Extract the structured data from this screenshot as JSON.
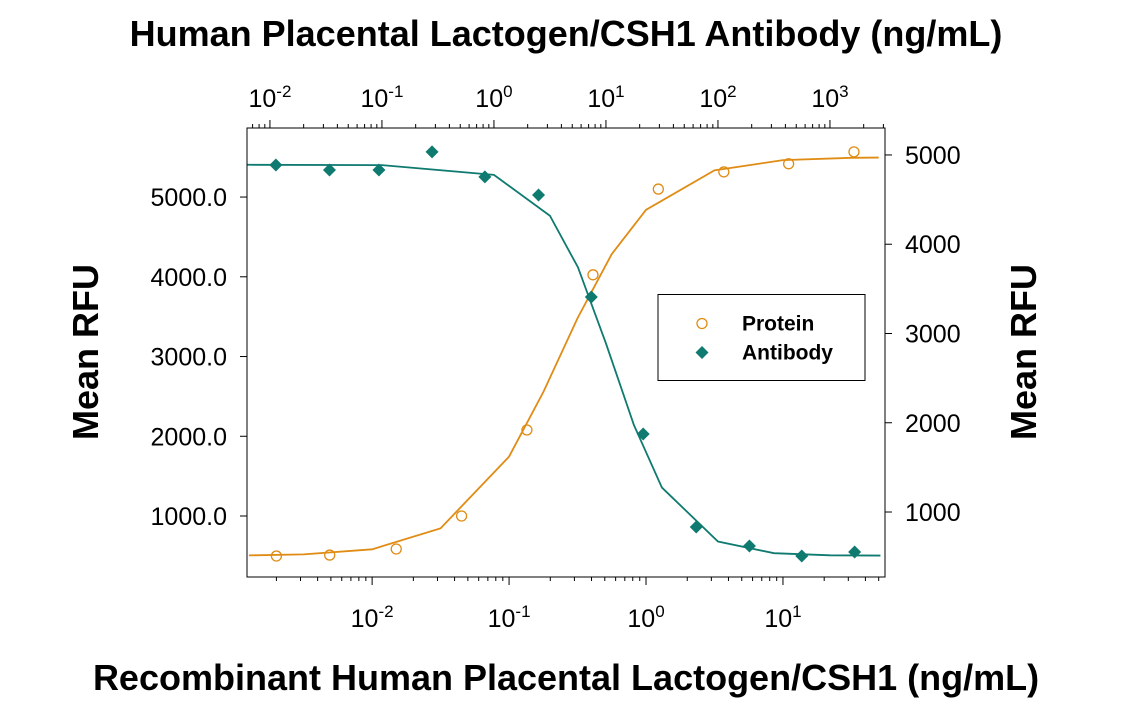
{
  "chart_data": {
    "type": "scatter",
    "xlabel": "Recombinant Human Placental Lactogen/CSH1 (ng/mL)",
    "x2label": "Human Placental Lactogen/CSH1 Antibody (ng/mL)",
    "ylabel": "Mean RFU",
    "y2label": "Mean RFU",
    "xscale": "log",
    "x2scale": "log",
    "xlim": [
      0.00122,
      55.6
    ],
    "xticks": [
      {
        "value": 0.01,
        "label": "10-2"
      },
      {
        "value": 0.1,
        "label": "10-1"
      },
      {
        "value": 1,
        "label": "100"
      },
      {
        "value": 10,
        "label": "101"
      }
    ],
    "x2lim": [
      0.00624,
      3100
    ],
    "x2ticks": [
      {
        "value": 0.01,
        "label": "10-2"
      },
      {
        "value": 0.1,
        "label": "10-1"
      },
      {
        "value": 1,
        "label": "100"
      },
      {
        "value": 10,
        "label": "101"
      },
      {
        "value": 100,
        "label": "102"
      },
      {
        "value": 1000,
        "label": "103"
      }
    ],
    "ylim": [
      235,
      5866
    ],
    "yticks": [
      {
        "value": 1000,
        "label": "1000.0"
      },
      {
        "value": 2000,
        "label": "2000.0"
      },
      {
        "value": 3000,
        "label": "3000.0"
      },
      {
        "value": 4000,
        "label": "4000.0"
      },
      {
        "value": 5000,
        "label": "5000.0"
      }
    ],
    "y2lim": [
      272,
      5302
    ],
    "y2ticks": [
      1000,
      2000,
      3000,
      4000,
      5000
    ],
    "legend": "center right",
    "series": [
      {
        "name": "Protein",
        "color": "#e08c14",
        "marker": "circle-open",
        "xaxis": "x",
        "x": [
          0.002,
          0.0049,
          0.015,
          0.045,
          0.135,
          0.41,
          1.23,
          3.7,
          11,
          33
        ],
        "values": [
          498,
          510,
          586,
          1000,
          2079,
          4025,
          5100,
          5315,
          5417,
          5567
        ],
        "fit": {
          "x": [
            0.00126,
            0.00316,
            0.01,
            0.0316,
            0.1,
            0.178,
            0.316,
            0.562,
            1,
            3.16,
            10,
            31.6,
            50
          ],
          "values": [
            506,
            519,
            582,
            845,
            1745,
            2555,
            3480,
            4285,
            4840,
            5335,
            5463,
            5492,
            5495
          ]
        }
      },
      {
        "name": "Antibody",
        "color": "#0f7a70",
        "marker": "diamond",
        "xaxis": "x2",
        "axis": "y2",
        "x": [
          0.0113,
          0.034,
          0.094,
          0.28,
          0.83,
          2.5,
          7.4,
          21.5,
          64,
          191,
          560,
          1660
        ],
        "values": [
          4888,
          4832,
          4832,
          5034,
          4754,
          4552,
          3409,
          1874,
          832,
          619,
          507,
          552
        ],
        "fit": {
          "x": [
            0.0063,
            0.1,
            1,
            3.16,
            5.62,
            10,
            17.8,
            31.6,
            100,
            316,
            1000,
            2820
          ],
          "values": [
            4890,
            4886,
            4777,
            4319,
            3742,
            2889,
            1972,
            1274,
            669,
            539,
            515,
            512
          ]
        }
      }
    ]
  }
}
